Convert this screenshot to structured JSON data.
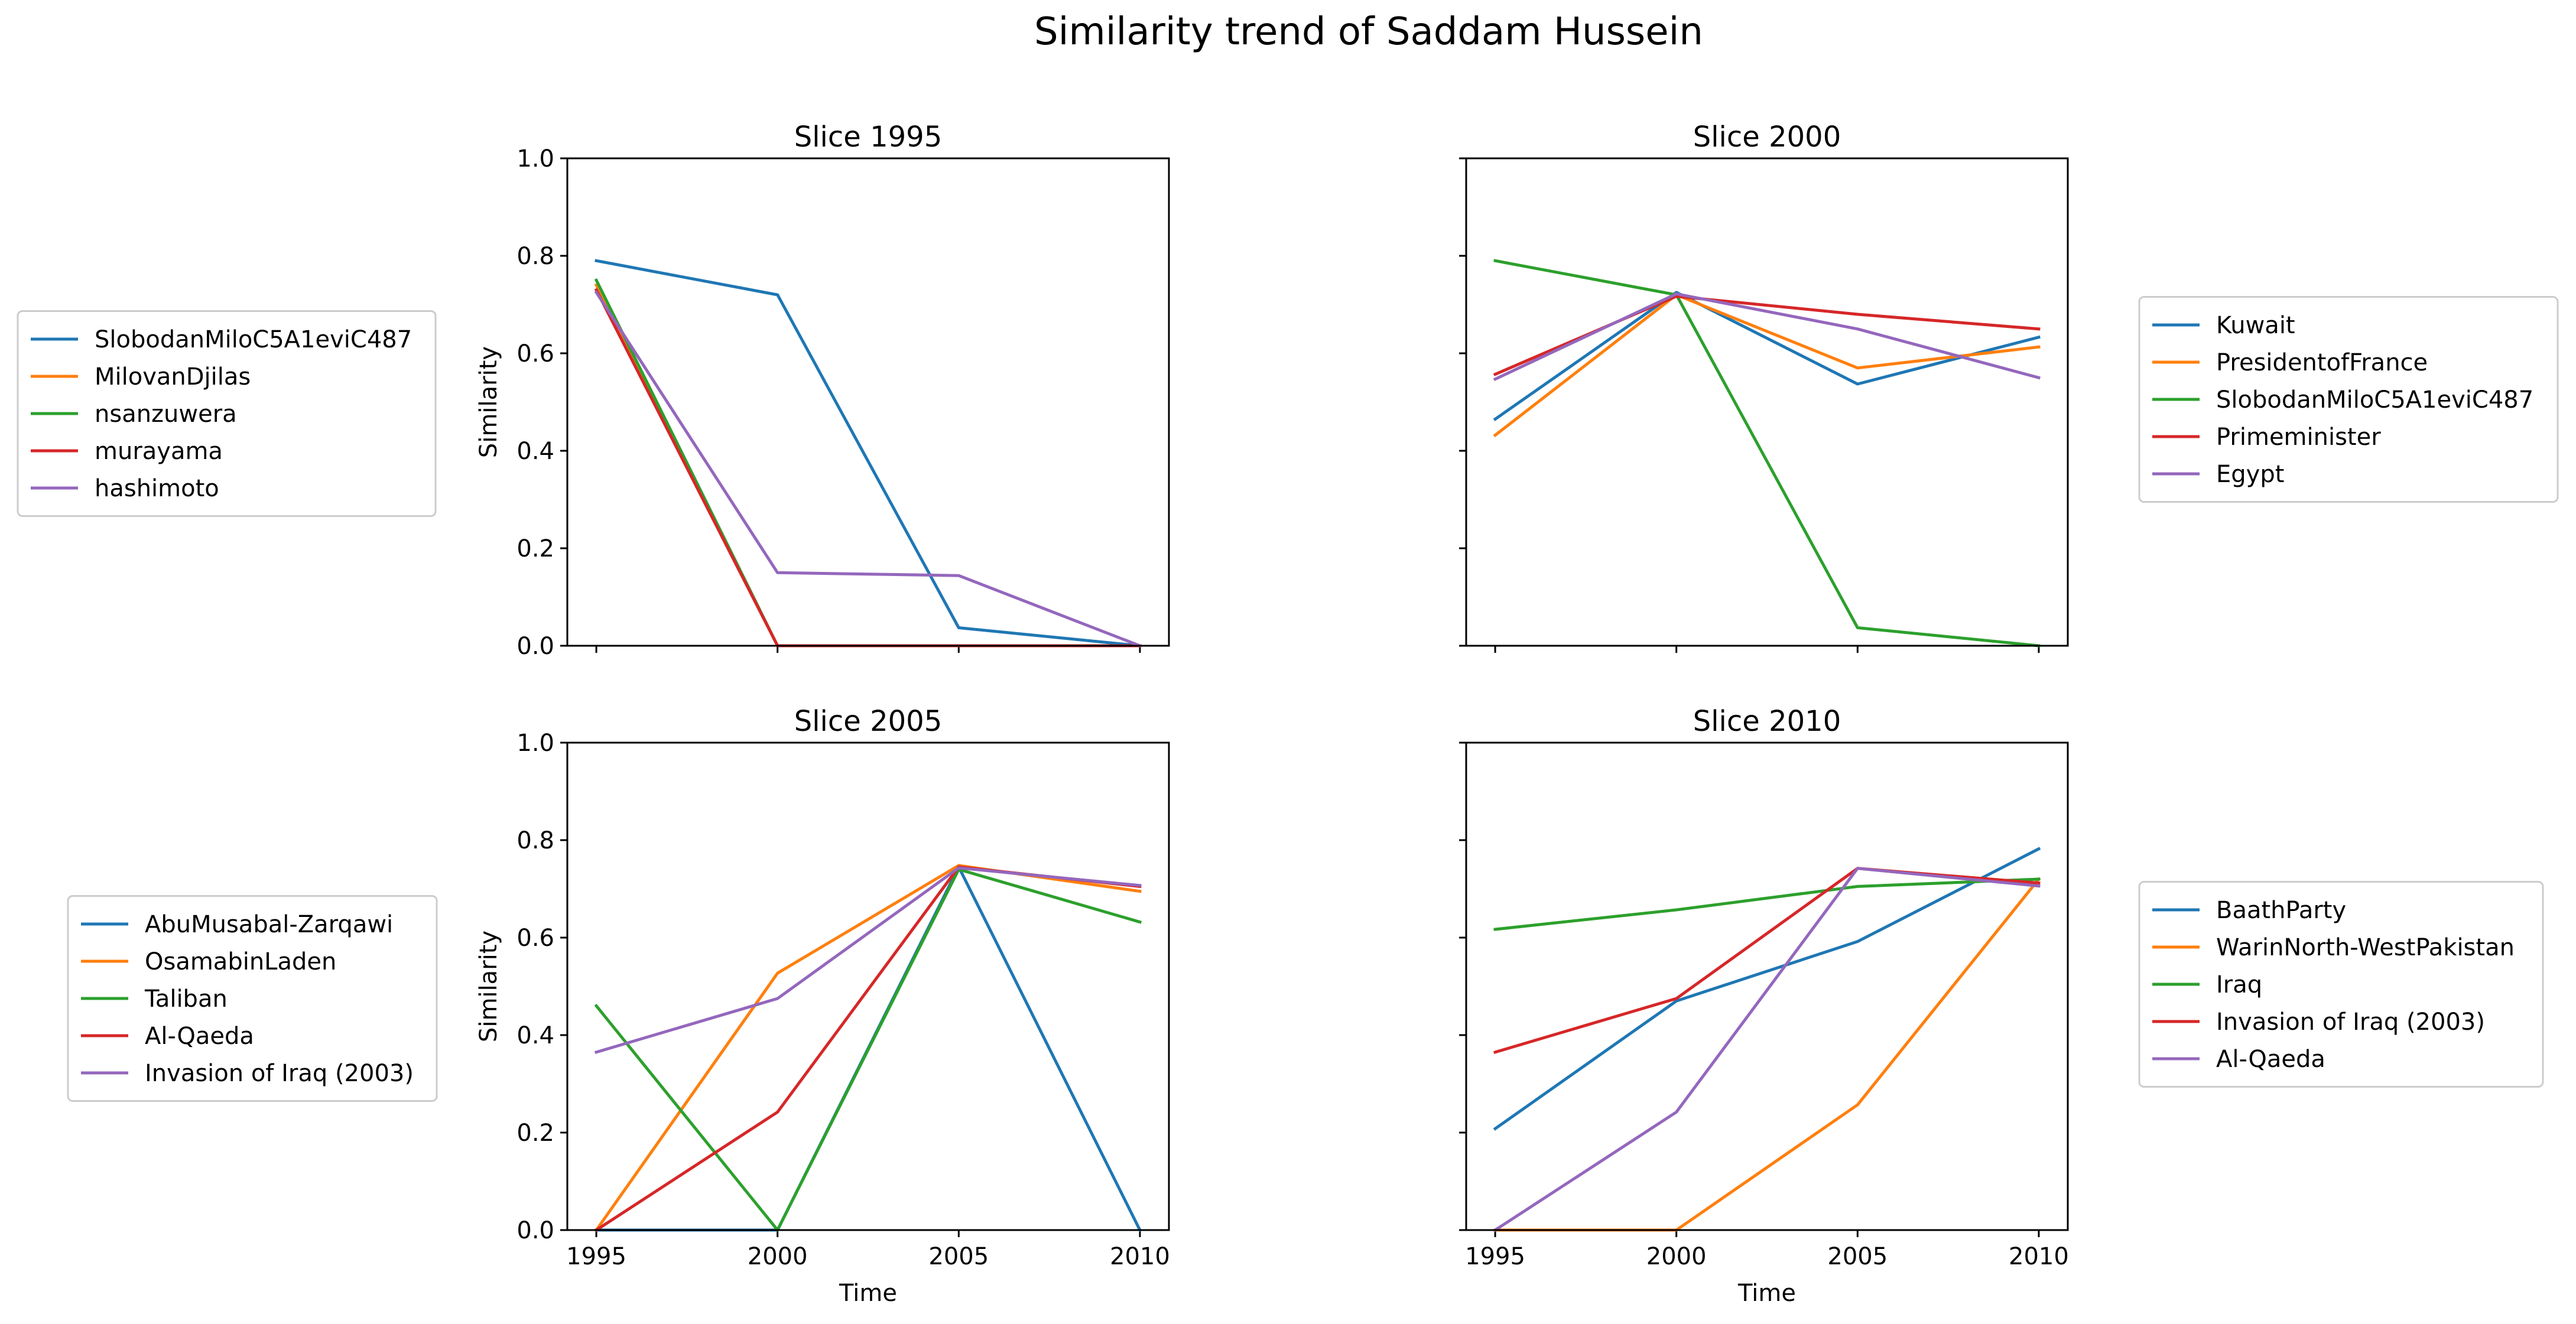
{
  "figure": {
    "title": "Similarity trend of Saddam Hussein",
    "xlabel": "Time",
    "ylabel": "Similarity"
  },
  "chart_data": [
    {
      "type": "line",
      "title": "Slice 1995",
      "xlabel": "",
      "ylabel": "Similarity",
      "x": [
        1995,
        2000,
        2005,
        2010
      ],
      "xlim": [
        1994.2,
        2010.8
      ],
      "ylim": [
        0,
        1
      ],
      "yticks": [
        "0.0",
        "0.2",
        "0.4",
        "0.6",
        "0.8",
        "1.0"
      ],
      "show_xtick_labels": false,
      "show_ytick_labels": true,
      "legend_position": "left",
      "series": [
        {
          "name": "SlobodanMiloC5A1eviC487",
          "color": "#1f77b4",
          "values": [
            0.79,
            0.72,
            0.037,
            0.0
          ]
        },
        {
          "name": "MilovanDjilas",
          "color": "#ff7f0e",
          "values": [
            0.74,
            0.0,
            0.0,
            0.0
          ]
        },
        {
          "name": "nsanzuwera",
          "color": "#2ca02c",
          "values": [
            0.75,
            0.0,
            0.0,
            0.0
          ]
        },
        {
          "name": "murayama",
          "color": "#d62728",
          "values": [
            0.73,
            0.0,
            0.0,
            0.0
          ]
        },
        {
          "name": "hashimoto",
          "color": "#9467bd",
          "values": [
            0.725,
            0.15,
            0.144,
            0.0
          ]
        }
      ]
    },
    {
      "type": "line",
      "title": "Slice 2000",
      "xlabel": "",
      "ylabel": "",
      "x": [
        1995,
        2000,
        2005,
        2010
      ],
      "xlim": [
        1994.2,
        2010.8
      ],
      "ylim": [
        0,
        1
      ],
      "yticks": [
        "0.0",
        "0.2",
        "0.4",
        "0.6",
        "0.8",
        "1.0"
      ],
      "show_xtick_labels": false,
      "show_ytick_labels": false,
      "legend_position": "right",
      "series": [
        {
          "name": "Kuwait",
          "color": "#1f77b4",
          "values": [
            0.465,
            0.725,
            0.537,
            0.633
          ]
        },
        {
          "name": "PresidentofFrance",
          "color": "#ff7f0e",
          "values": [
            0.432,
            0.72,
            0.57,
            0.613
          ]
        },
        {
          "name": "SlobodanMiloC5A1eviC487",
          "color": "#2ca02c",
          "values": [
            0.79,
            0.72,
            0.037,
            0.0
          ]
        },
        {
          "name": "Primeminister",
          "color": "#d62728",
          "values": [
            0.557,
            0.717,
            0.68,
            0.65
          ]
        },
        {
          "name": "Egypt",
          "color": "#9467bd",
          "values": [
            0.547,
            0.722,
            0.65,
            0.55
          ]
        }
      ]
    },
    {
      "type": "line",
      "title": "Slice 2005",
      "xlabel": "Time",
      "ylabel": "Similarity",
      "x": [
        1995,
        2000,
        2005,
        2010
      ],
      "xlim": [
        1994.2,
        2010.8
      ],
      "ylim": [
        0,
        1
      ],
      "yticks": [
        "0.0",
        "0.2",
        "0.4",
        "0.6",
        "0.8",
        "1.0"
      ],
      "xticks": [
        "1995",
        "2000",
        "2005",
        "2010"
      ],
      "show_xtick_labels": true,
      "show_ytick_labels": true,
      "legend_position": "left",
      "series": [
        {
          "name": "AbuMusabal-Zarqawi",
          "color": "#1f77b4",
          "values": [
            0.0,
            0.0,
            0.745,
            0.0
          ]
        },
        {
          "name": "OsamabinLaden",
          "color": "#ff7f0e",
          "values": [
            0.0,
            0.527,
            0.748,
            0.695
          ]
        },
        {
          "name": "Taliban",
          "color": "#2ca02c",
          "values": [
            0.46,
            0.0,
            0.74,
            0.632
          ]
        },
        {
          "name": "Al-Qaeda",
          "color": "#d62728",
          "values": [
            0.0,
            0.242,
            0.745,
            0.705
          ]
        },
        {
          "name": "Invasion of Iraq (2003)",
          "color": "#9467bd",
          "values": [
            0.365,
            0.475,
            0.743,
            0.707
          ]
        }
      ]
    },
    {
      "type": "line",
      "title": "Slice 2010",
      "xlabel": "Time",
      "ylabel": "",
      "x": [
        1995,
        2000,
        2005,
        2010
      ],
      "xlim": [
        1994.2,
        2010.8
      ],
      "ylim": [
        0,
        1
      ],
      "yticks": [
        "0.0",
        "0.2",
        "0.4",
        "0.6",
        "0.8",
        "1.0"
      ],
      "xticks": [
        "1995",
        "2000",
        "2005",
        "2010"
      ],
      "show_xtick_labels": true,
      "show_ytick_labels": false,
      "legend_position": "right",
      "series": [
        {
          "name": "BaathParty",
          "color": "#1f77b4",
          "values": [
            0.208,
            0.47,
            0.592,
            0.782
          ]
        },
        {
          "name": "WarinNorth-WestPakistan",
          "color": "#ff7f0e",
          "values": [
            0.0,
            0.0,
            0.257,
            0.72
          ]
        },
        {
          "name": "Iraq",
          "color": "#2ca02c",
          "values": [
            0.617,
            0.657,
            0.705,
            0.72
          ]
        },
        {
          "name": "Invasion of Iraq (2003)",
          "color": "#d62728",
          "values": [
            0.365,
            0.475,
            0.742,
            0.712
          ]
        },
        {
          "name": "Al-Qaeda",
          "color": "#9467bd",
          "values": [
            0.0,
            0.242,
            0.742,
            0.706
          ]
        }
      ]
    }
  ]
}
